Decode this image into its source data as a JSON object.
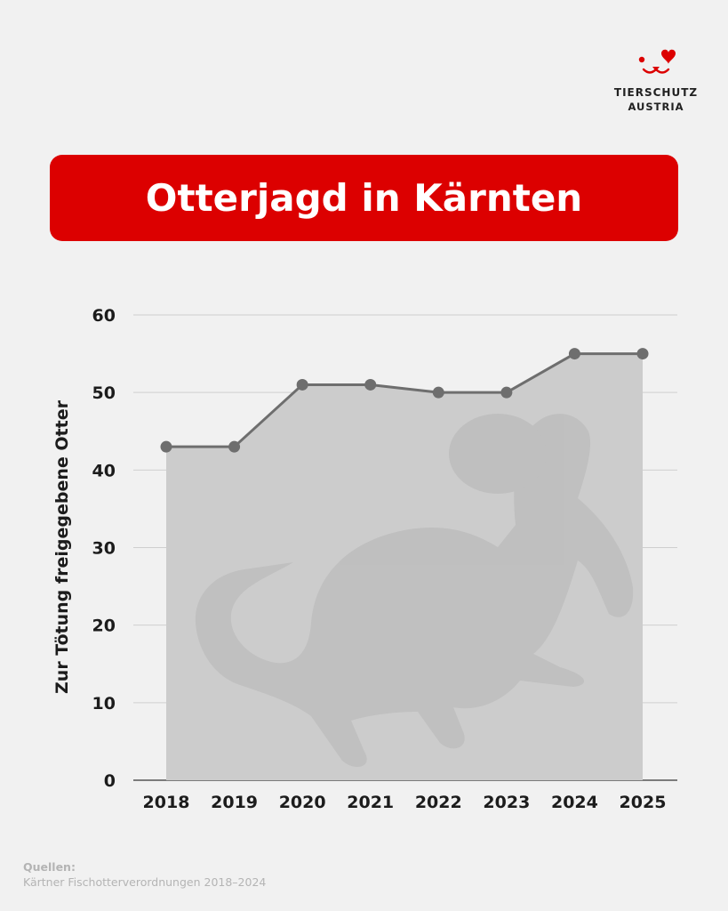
{
  "brand": {
    "name_line1": "TIERSCHUTZ",
    "name_line2": "AUSTRIA",
    "logo_icon": "dog-face-heart-icon",
    "accent_color": "#dc0000"
  },
  "header": {
    "title": "Otterjagd in Kärnten"
  },
  "chart_data": {
    "type": "area",
    "title": "",
    "xlabel": "",
    "ylabel": "Zur Tötung freigegebene Otter",
    "categories": [
      "2018",
      "2019",
      "2020",
      "2021",
      "2022",
      "2023",
      "2024",
      "2025"
    ],
    "series": [
      {
        "values": [
          43,
          43,
          51,
          51,
          50,
          50,
          55,
          55
        ]
      }
    ],
    "ylim": [
      0,
      60
    ],
    "yticks": [
      0,
      10,
      20,
      30,
      40,
      50,
      60
    ],
    "grid": true,
    "line_color": "#6e6e6e",
    "fill_color": "#cccccc",
    "background_illustration": "otter-illustration"
  },
  "footer": {
    "sources_heading": "Quellen:",
    "sources_text": "Kärtner Fischotterverordnungen 2018–2024"
  }
}
